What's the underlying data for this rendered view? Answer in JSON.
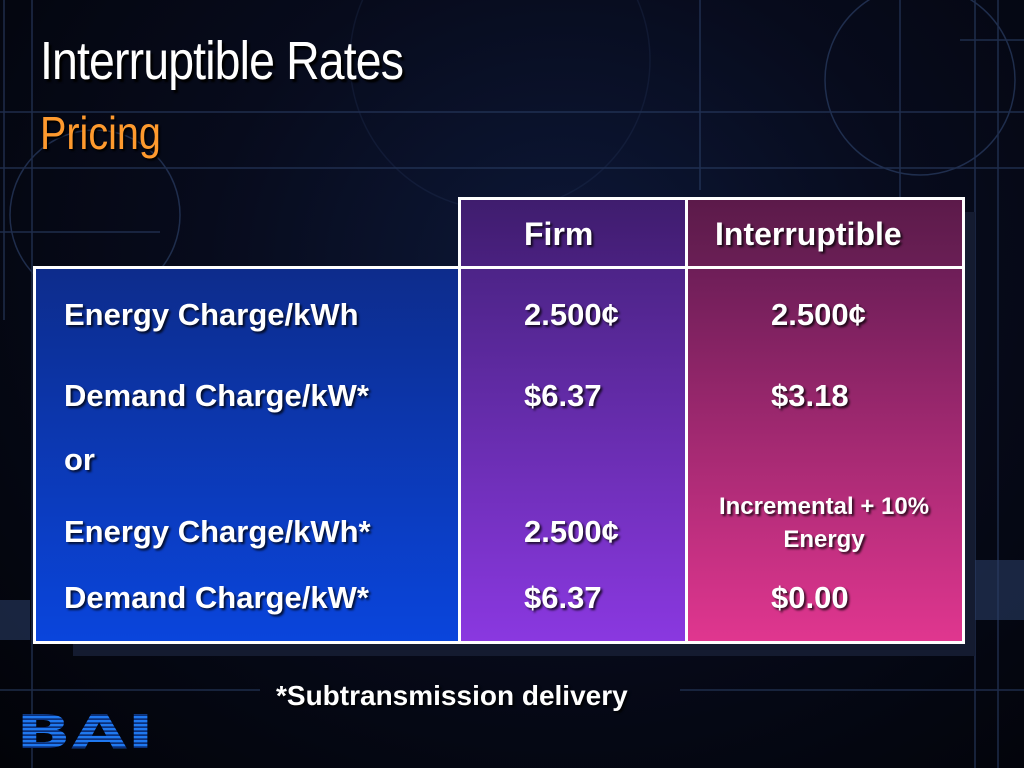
{
  "slide": {
    "title": "Interruptible Rates",
    "subtitle": "Pricing",
    "footnote": "*Subtransmission delivery",
    "logo_text": "BAI"
  },
  "table": {
    "headers": [
      "",
      "Firm",
      "Interruptible"
    ],
    "rows": [
      {
        "label": "Energy Charge/kWh",
        "firm": "2.500¢",
        "interruptible": "2.500¢"
      },
      {
        "label": "Demand Charge/kW*",
        "firm": "$6.37",
        "interruptible": "$3.18"
      },
      {
        "label": "or",
        "firm": "",
        "interruptible": ""
      },
      {
        "label": "Energy Charge/kWh*",
        "firm": "2.500¢",
        "interruptible": "Incremental + 10% Energy"
      },
      {
        "label": "Demand Charge/kW*",
        "firm": "$6.37",
        "interruptible": "$0.00"
      }
    ]
  },
  "colors": {
    "title": "#ffffff",
    "subtitle": "#ff9a2e",
    "label_column": "#0a3fd6",
    "firm_column": "#7a2fd0",
    "interruptible_column": "#c2307e"
  }
}
